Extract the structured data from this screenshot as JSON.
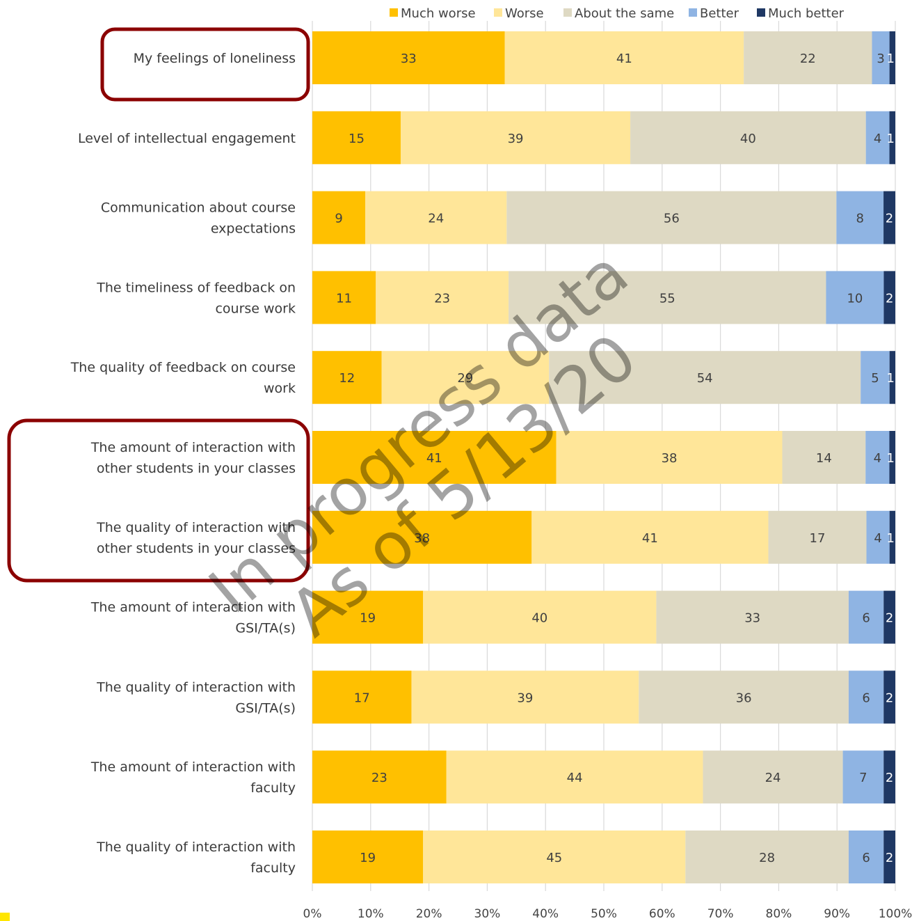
{
  "chart_data": {
    "type": "bar",
    "orientation": "horizontal",
    "stacked": "percent",
    "categories": [
      "My feelings of loneliness",
      "Level of intellectual engagement",
      "Communication about course expectations",
      "The timeliness of feedback on course work",
      "The quality of feedback on course work",
      "The amount of interaction with other students in your classes",
      "The quality of interaction with other students in your classes",
      "The amount of interaction with GSI/TA(s)",
      "The quality of interaction with GSI/TA(s)",
      "The amount of interaction with faculty",
      "The quality of interaction with faculty"
    ],
    "series": [
      {
        "name": "Much worse",
        "color": "#FFC000",
        "values": [
          33,
          15,
          9,
          11,
          12,
          41,
          38,
          19,
          17,
          23,
          19
        ]
      },
      {
        "name": "Worse",
        "color": "#FFE699",
        "values": [
          41,
          39,
          24,
          23,
          29,
          38,
          41,
          40,
          39,
          44,
          45
        ]
      },
      {
        "name": "About the same",
        "color": "#DED9C3",
        "values": [
          22,
          40,
          56,
          55,
          54,
          14,
          17,
          33,
          36,
          24,
          28
        ]
      },
      {
        "name": "Better",
        "color": "#8FB4E3",
        "values": [
          3,
          4,
          8,
          10,
          5,
          4,
          4,
          6,
          6,
          7,
          6
        ]
      },
      {
        "name": "Much better",
        "color": "#1F3864",
        "values": [
          1,
          1,
          2,
          2,
          1,
          1,
          1,
          2,
          2,
          2,
          2
        ]
      }
    ],
    "x_ticks": [
      "0%",
      "10%",
      "20%",
      "30%",
      "40%",
      "50%",
      "60%",
      "70%",
      "80%",
      "90%",
      "100%"
    ],
    "xlim": [
      0,
      100
    ],
    "legend": "top",
    "grid": "vertical",
    "highlighted_categories": [
      0,
      5,
      6
    ],
    "highlight_color": "#8B0000",
    "watermark": [
      "In progress data",
      "As of 5/13/20"
    ]
  }
}
